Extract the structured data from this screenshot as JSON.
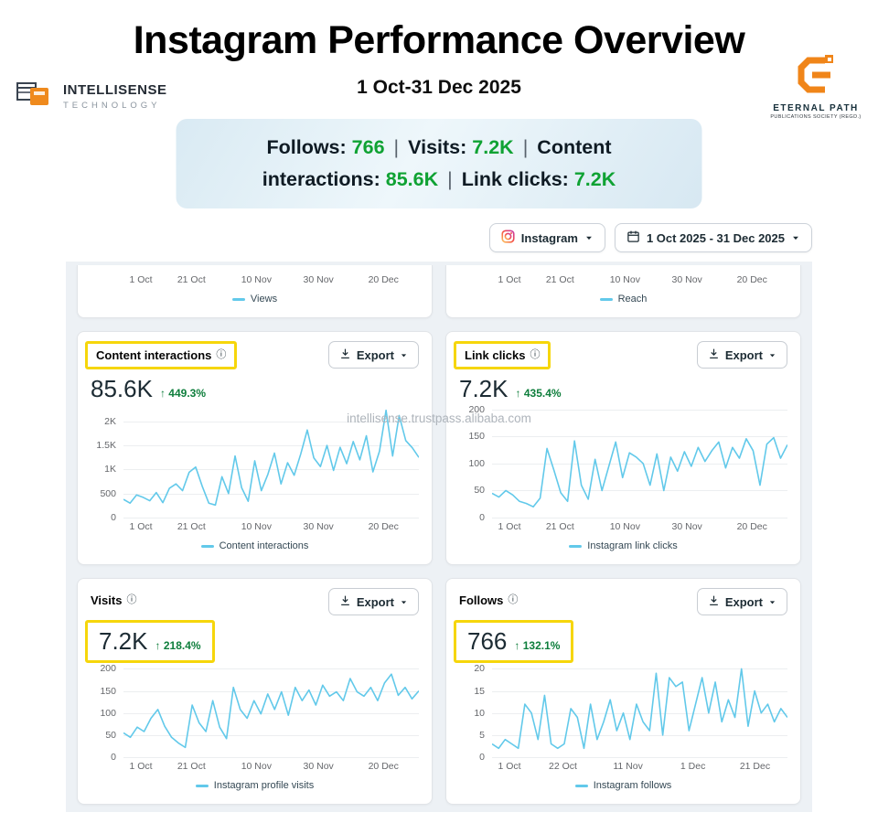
{
  "header": {
    "title": "Instagram Performance Overview",
    "subtitle": "1 Oct-31 Dec 2025",
    "logo_left": {
      "name": "INTELLISENSE",
      "sub": "TECHNOLOGY"
    },
    "logo_right": {
      "name": "ETERNAL PATH",
      "sub": "PUBLICATIONS SOCIETY (REGD.)"
    }
  },
  "summary": {
    "separator": "|",
    "items": [
      {
        "label": "Follows:",
        "value": "766"
      },
      {
        "label": "Visits:",
        "value": "7.2K"
      },
      {
        "label": "Content interactions:",
        "value": "85.6K"
      },
      {
        "label": "Link clicks:",
        "value": "7.2K"
      }
    ]
  },
  "toolbar": {
    "account_label": "Instagram",
    "date_range": "1 Oct 2025 - 31 Dec 2025"
  },
  "common": {
    "export_label": "Export",
    "up_arrow": "↑",
    "info_glyph": "ⓘ"
  },
  "watermark": "intellisense.trustpass.alibaba.com",
  "colors": {
    "line": "#62c9ea",
    "highlight": "#f6d60b",
    "positive": "#0e7e3c",
    "banner_green": "#0fa233"
  },
  "cards": {
    "views_partial": {
      "legend": "Views",
      "chart_data": {
        "type": "line",
        "x_ticks": [
          {
            "pos": 2,
            "label": "1 Oct"
          },
          {
            "pos": 23,
            "label": "21 Oct"
          },
          {
            "pos": 45,
            "label": "10 Nov"
          },
          {
            "pos": 66,
            "label": "30 Nov"
          },
          {
            "pos": 88,
            "label": "20 Dec"
          }
        ]
      }
    },
    "reach_partial": {
      "legend": "Reach",
      "chart_data": {
        "type": "line",
        "x_ticks": [
          {
            "pos": 2,
            "label": "1 Oct"
          },
          {
            "pos": 23,
            "label": "21 Oct"
          },
          {
            "pos": 45,
            "label": "10 Nov"
          },
          {
            "pos": 66,
            "label": "30 Nov"
          },
          {
            "pos": 88,
            "label": "20 Dec"
          }
        ]
      }
    },
    "content_interactions": {
      "title": "Content interactions",
      "value": "85.6K",
      "delta": "449.3%",
      "legend": "Content interactions",
      "chart_data": {
        "type": "line",
        "line_color": "#62c9ea",
        "ylim": [
          0,
          2300
        ],
        "y_ticks": [
          {
            "v": 0,
            "label": "0"
          },
          {
            "v": 500,
            "label": "500"
          },
          {
            "v": 1000,
            "label": "1K"
          },
          {
            "v": 1500,
            "label": "1.5K"
          },
          {
            "v": 2000,
            "label": "2K"
          }
        ],
        "x_ticks": [
          {
            "pos": 2,
            "label": "1 Oct"
          },
          {
            "pos": 23,
            "label": "21 Oct"
          },
          {
            "pos": 45,
            "label": "10 Nov"
          },
          {
            "pos": 66,
            "label": "30 Nov"
          },
          {
            "pos": 88,
            "label": "20 Dec"
          }
        ],
        "values": [
          380,
          300,
          470,
          420,
          350,
          520,
          310,
          610,
          700,
          560,
          940,
          1050,
          650,
          300,
          260,
          850,
          500,
          1280,
          620,
          340,
          1180,
          560,
          900,
          1340,
          700,
          1140,
          880,
          1320,
          1820,
          1240,
          1060,
          1500,
          980,
          1460,
          1120,
          1580,
          1200,
          1700,
          950,
          1380,
          2230,
          1280,
          2120,
          1600,
          1450,
          1250
        ]
      }
    },
    "link_clicks": {
      "title": "Link clicks",
      "value": "7.2K",
      "delta": "435.4%",
      "legend": "Instagram link clicks",
      "chart_data": {
        "type": "line",
        "line_color": "#62c9ea",
        "ylim": [
          0,
          205
        ],
        "y_ticks": [
          {
            "v": 0,
            "label": "0"
          },
          {
            "v": 50,
            "label": "50"
          },
          {
            "v": 100,
            "label": "100"
          },
          {
            "v": 150,
            "label": "150"
          },
          {
            "v": 200,
            "label": "200"
          }
        ],
        "x_ticks": [
          {
            "pos": 2,
            "label": "1 Oct"
          },
          {
            "pos": 23,
            "label": "21 Oct"
          },
          {
            "pos": 45,
            "label": "10 Nov"
          },
          {
            "pos": 66,
            "label": "30 Nov"
          },
          {
            "pos": 88,
            "label": "20 Dec"
          }
        ],
        "values": [
          45,
          38,
          50,
          42,
          30,
          26,
          20,
          36,
          128,
          88,
          46,
          30,
          142,
          60,
          34,
          108,
          50,
          95,
          140,
          74,
          120,
          112,
          100,
          60,
          118,
          50,
          112,
          86,
          122,
          95,
          130,
          104,
          124,
          140,
          92,
          130,
          110,
          146,
          124,
          60,
          136,
          148,
          110,
          135
        ]
      }
    },
    "visits": {
      "title": "Visits",
      "value": "7.2K",
      "delta": "218.4%",
      "legend": "Instagram profile visits",
      "chart_data": {
        "type": "line",
        "line_color": "#62c9ea",
        "ylim": [
          0,
          205
        ],
        "y_ticks": [
          {
            "v": 0,
            "label": "0"
          },
          {
            "v": 50,
            "label": "50"
          },
          {
            "v": 100,
            "label": "100"
          },
          {
            "v": 150,
            "label": "150"
          },
          {
            "v": 200,
            "label": "200"
          }
        ],
        "x_ticks": [
          {
            "pos": 2,
            "label": "1 Oct"
          },
          {
            "pos": 23,
            "label": "21 Oct"
          },
          {
            "pos": 45,
            "label": "10 Nov"
          },
          {
            "pos": 66,
            "label": "30 Nov"
          },
          {
            "pos": 88,
            "label": "20 Dec"
          }
        ],
        "values": [
          55,
          45,
          68,
          58,
          88,
          108,
          70,
          45,
          32,
          22,
          118,
          78,
          58,
          128,
          68,
          42,
          158,
          108,
          88,
          128,
          98,
          143,
          108,
          148,
          95,
          158,
          128,
          152,
          118,
          163,
          138,
          148,
          128,
          178,
          148,
          138,
          158,
          128,
          168,
          188,
          140,
          158,
          132,
          150
        ]
      }
    },
    "follows": {
      "title": "Follows",
      "value": "766",
      "delta": "132.1%",
      "legend": "Instagram follows",
      "chart_data": {
        "type": "line",
        "line_color": "#62c9ea",
        "ylim": [
          0,
          20.5
        ],
        "y_ticks": [
          {
            "v": 0,
            "label": "0"
          },
          {
            "v": 5,
            "label": "5"
          },
          {
            "v": 10,
            "label": "10"
          },
          {
            "v": 15,
            "label": "15"
          },
          {
            "v": 20,
            "label": "20"
          }
        ],
        "x_ticks": [
          {
            "pos": 2,
            "label": "1 Oct"
          },
          {
            "pos": 24,
            "label": "22 Oct"
          },
          {
            "pos": 46,
            "label": "11 Nov"
          },
          {
            "pos": 68,
            "label": "1 Dec"
          },
          {
            "pos": 89,
            "label": "21 Dec"
          }
        ],
        "values": [
          3,
          2,
          4,
          3,
          2,
          12,
          10,
          4,
          14,
          3,
          2,
          3,
          11,
          9,
          2,
          12,
          4,
          8,
          13,
          6,
          10,
          4,
          12,
          8,
          6,
          19,
          5,
          18,
          16,
          17,
          6,
          12,
          18,
          10,
          17,
          8,
          13,
          9,
          20,
          7,
          15,
          10,
          12,
          8,
          11,
          9
        ]
      }
    }
  }
}
